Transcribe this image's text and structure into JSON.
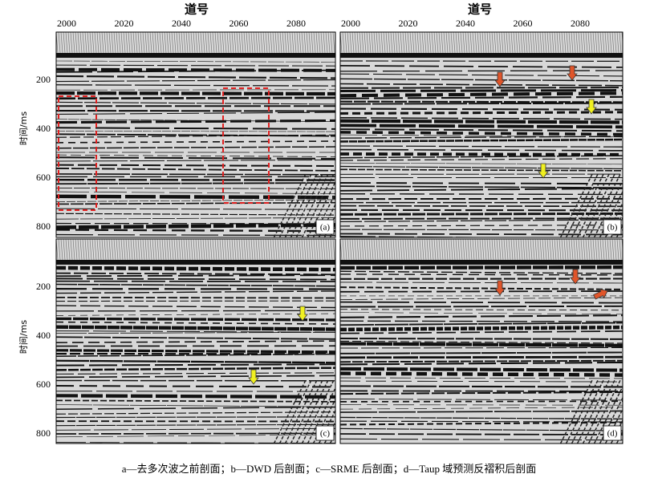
{
  "x_axis": {
    "title": "道号",
    "ticks": [
      2000,
      2020,
      2040,
      2060,
      2080
    ]
  },
  "y_axis": {
    "title": "时间/ms",
    "ticks": [
      200,
      400,
      600,
      800
    ]
  },
  "panels": [
    {
      "label": "(a)"
    },
    {
      "label": "(b)"
    },
    {
      "label": "(c)"
    },
    {
      "label": "(d)"
    }
  ],
  "caption": "a—去多次波之前剖面；b—DWD 后剖面；c—SRME 后剖面；d—Taup 域预测反褶积后剖面"
}
